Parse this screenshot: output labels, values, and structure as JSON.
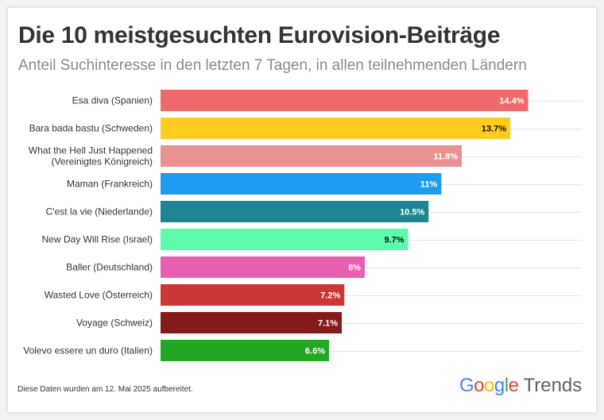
{
  "title": "Die 10 meistgesuchten Eurovision-Beiträge",
  "subtitle": "Anteil Suchinteresse in den letzten 7 Tagen, in allen teilnehmenden Ländern",
  "footnote": "Diese Daten wurden am 12. Mai 2025 aufbereitet.",
  "logo": {
    "google": "Google",
    "trends": "Trends"
  },
  "chart_data": {
    "type": "bar",
    "orientation": "horizontal",
    "grid": true,
    "xlim": [
      0,
      16.5
    ],
    "categories": [
      [
        "Esa diva (Spanien)"
      ],
      [
        "Bara bada bastu (Schweden)"
      ],
      [
        "What the Hell Just Happened",
        "(Vereinigtes Königreich)"
      ],
      [
        "Maman (Frankreich)"
      ],
      [
        "C'est la vie (Niederlande)"
      ],
      [
        "New Day Will Rise (Israel)"
      ],
      [
        "Baller (Deutschland)"
      ],
      [
        "Wasted Love (Österreich)"
      ],
      [
        "Voyage (Schweiz)"
      ],
      [
        "Volevo essere un duro (Italien)"
      ]
    ],
    "values": [
      14.4,
      13.7,
      11.8,
      11,
      10.5,
      9.7,
      8,
      7.2,
      7.1,
      6.6
    ],
    "value_labels": [
      "14.4%",
      "13.7%",
      "11.8%",
      "11%",
      "10.5%",
      "9.7%",
      "8%",
      "7.2%",
      "7.1%",
      "6.6%"
    ],
    "colors": [
      "#ee6a6a",
      "#ffcc1f",
      "#ea9292",
      "#1e9cf0",
      "#1d8594",
      "#5dfcac",
      "#e85fb2",
      "#cc3636",
      "#841a1a",
      "#22a822"
    ],
    "label_colors": [
      "#ffffff",
      "#111111",
      "#ffffff",
      "#ffffff",
      "#ffffff",
      "#111111",
      "#ffffff",
      "#ffffff",
      "#ffffff",
      "#ffffff"
    ]
  }
}
